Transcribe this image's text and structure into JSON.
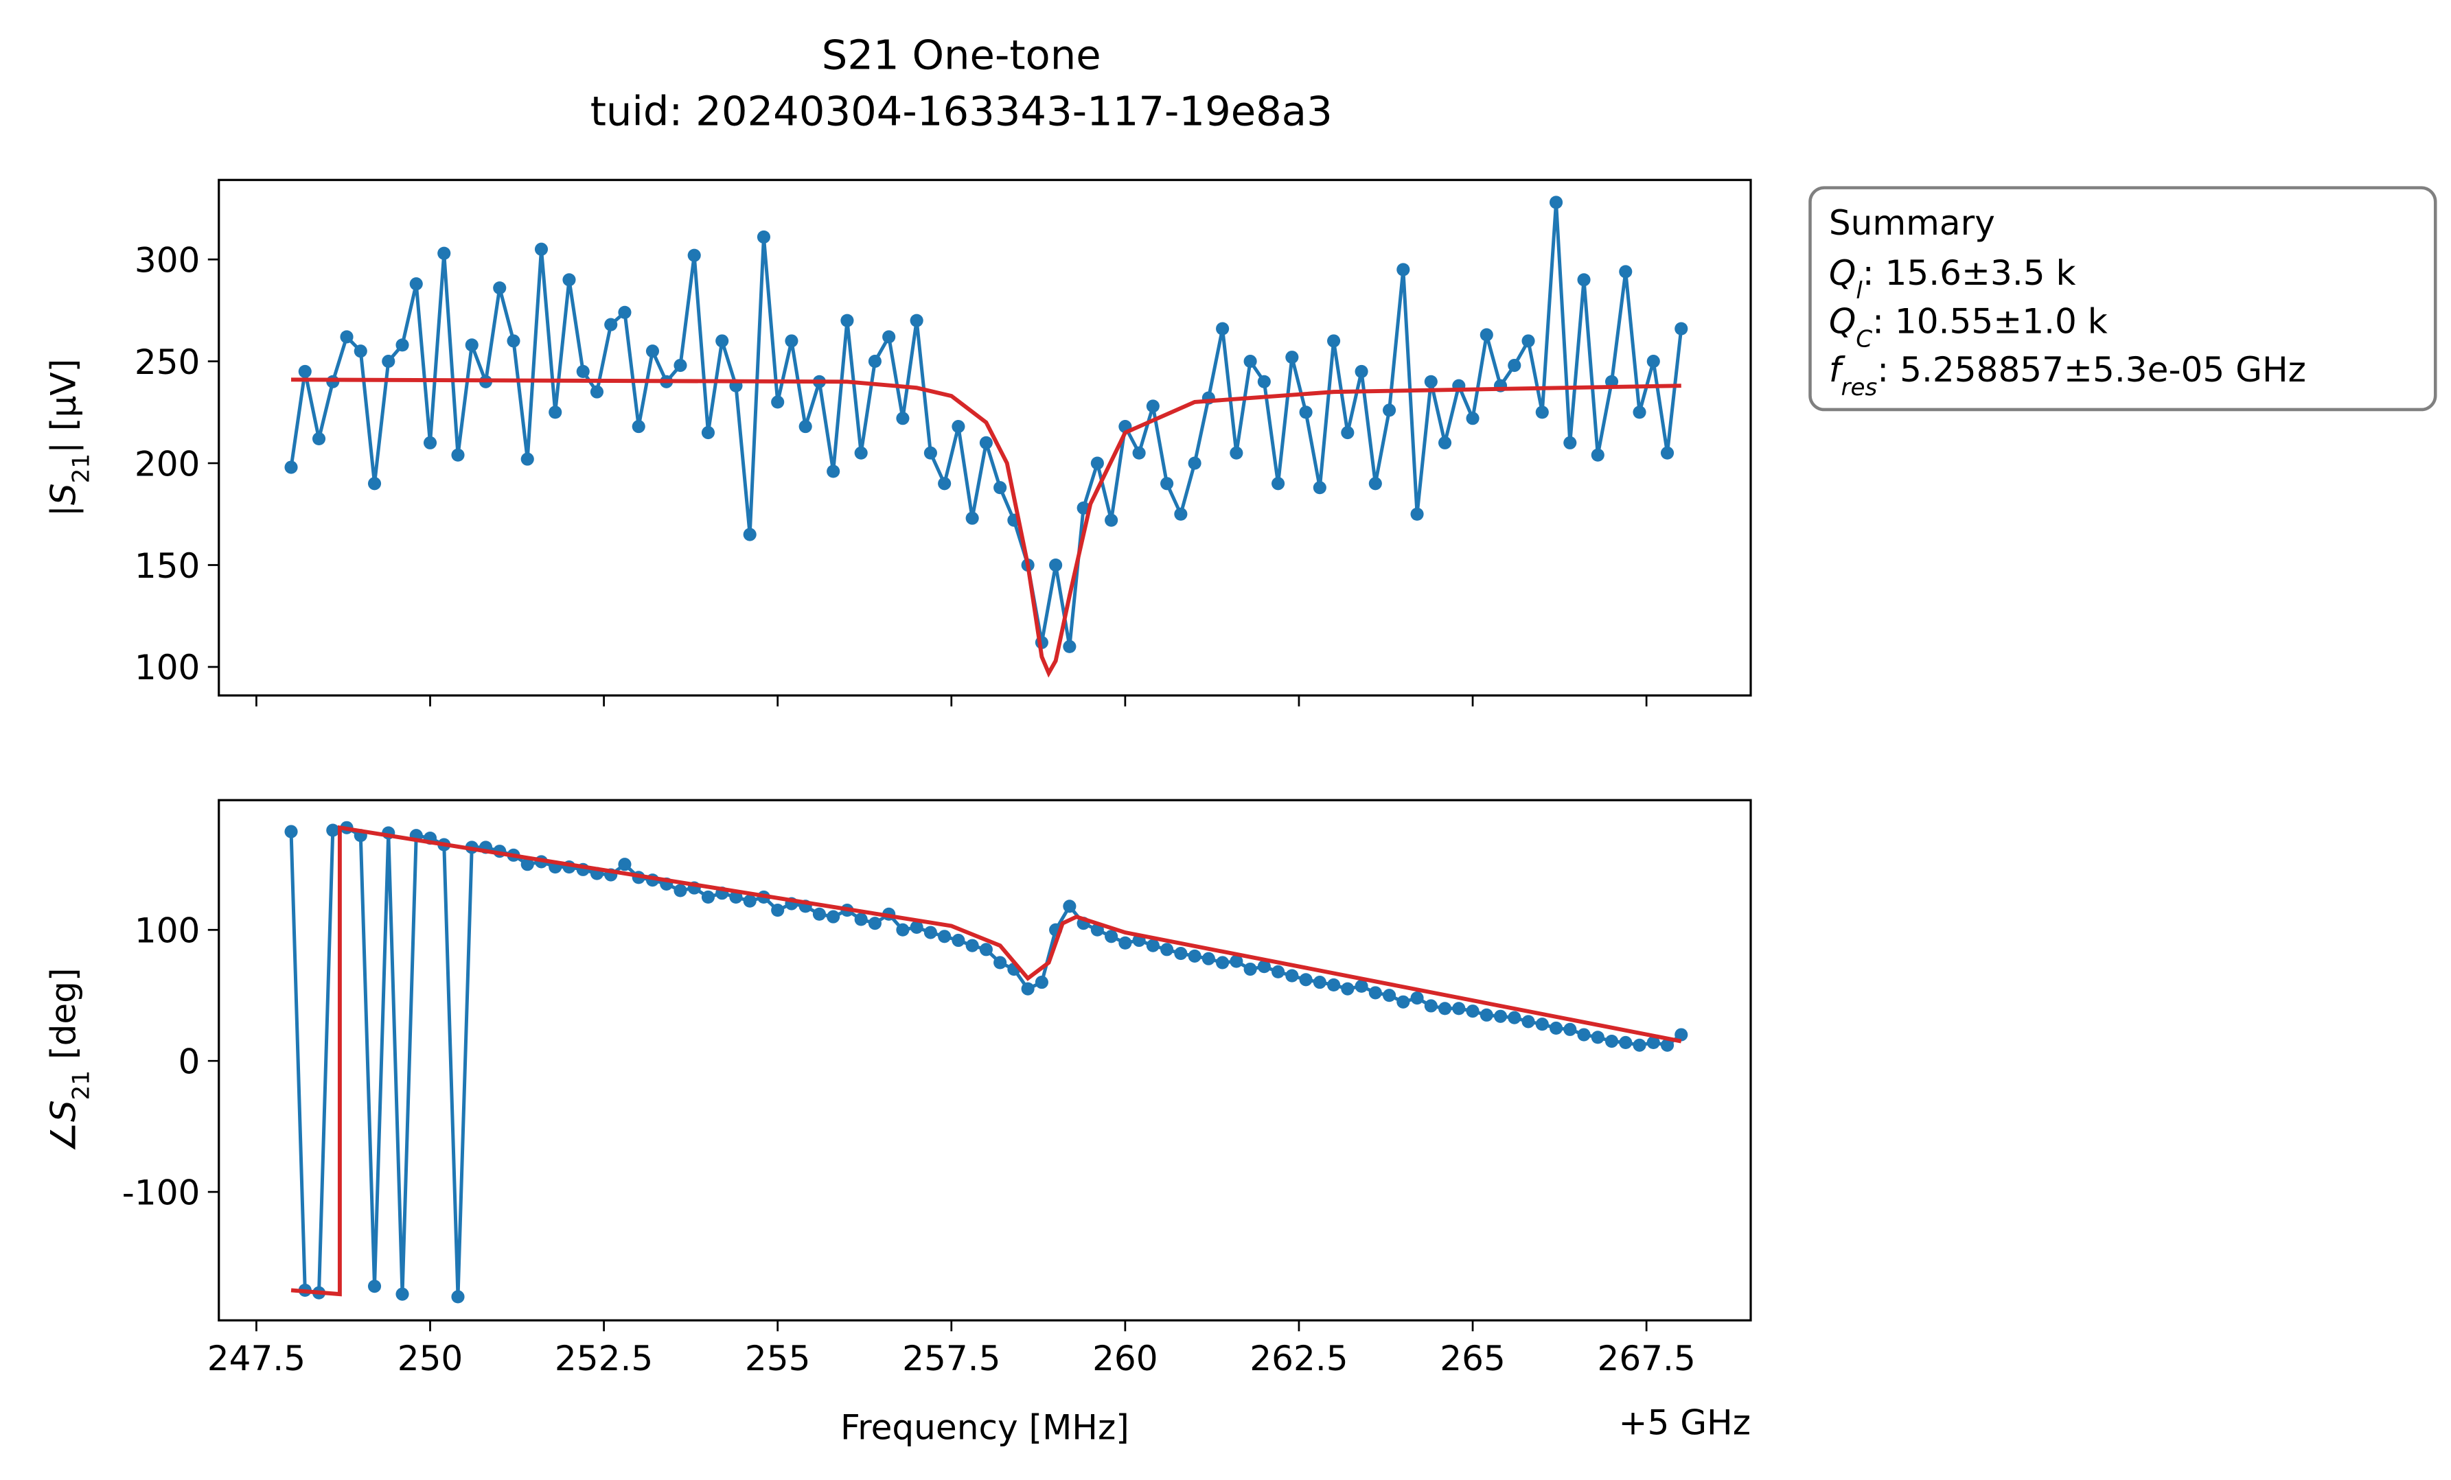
{
  "chart_data": [
    {
      "type": "line",
      "title": "S21 One-tone",
      "subtitle": "tuid: 20240304-163343-117-19e8a3",
      "ylabel": [
        "|S",
        "21",
        "| [µV]"
      ],
      "x": [
        248.0,
        248.2,
        248.4,
        248.6,
        248.8,
        249.0,
        249.2,
        249.4,
        249.6,
        249.8,
        250.0,
        250.2,
        250.4,
        250.6,
        250.8,
        251.0,
        251.2,
        251.4,
        251.6,
        251.8,
        252.0,
        252.2,
        252.4,
        252.6,
        252.8,
        253.0,
        253.2,
        253.4,
        253.6,
        253.8,
        254.0,
        254.2,
        254.4,
        254.6,
        254.8,
        255.0,
        255.2,
        255.4,
        255.6,
        255.8,
        256.0,
        256.2,
        256.4,
        256.6,
        256.8,
        257.0,
        257.2,
        257.4,
        257.6,
        257.8,
        258.0,
        258.2,
        258.4,
        258.6,
        258.8,
        259.0,
        259.2,
        259.4,
        259.6,
        259.8,
        260.0,
        260.2,
        260.4,
        260.6,
        260.8,
        261.0,
        261.2,
        261.4,
        261.6,
        261.8,
        262.0,
        262.2,
        262.4,
        262.6,
        262.8,
        263.0,
        263.2,
        263.4,
        263.6,
        263.8,
        264.0,
        264.2,
        264.4,
        264.6,
        264.8,
        265.0,
        265.2,
        265.4,
        265.6,
        265.8,
        266.0,
        266.2,
        266.4,
        266.6,
        266.8,
        267.0,
        267.2,
        267.4,
        267.6,
        267.8,
        268.0
      ],
      "series": [
        {
          "color": "#1f77b4",
          "marker": true,
          "values": [
            198,
            245,
            212,
            240,
            262,
            255,
            190,
            250,
            258,
            288,
            210,
            303,
            204,
            258,
            240,
            286,
            260,
            202,
            305,
            225,
            290,
            245,
            235,
            268,
            274,
            218,
            255,
            240,
            248,
            302,
            215,
            260,
            238,
            165,
            311,
            230,
            260,
            218,
            240,
            196,
            270,
            205,
            250,
            262,
            222,
            270,
            205,
            190,
            218,
            173,
            210,
            188,
            172,
            150,
            112,
            150,
            110,
            178,
            200,
            172,
            218,
            205,
            228,
            190,
            175,
            200,
            232,
            266,
            205,
            250,
            240,
            190,
            252,
            225,
            188,
            260,
            215,
            245,
            190,
            226,
            295,
            175,
            240,
            210,
            238,
            222,
            263,
            238,
            248,
            260,
            225,
            328,
            210,
            290,
            204,
            240,
            294,
            225,
            250,
            205,
            266
          ]
        },
        {
          "color": "#d62728",
          "marker": false,
          "x": [
            248,
            256,
            257,
            257.5,
            258,
            258.3,
            258.6,
            258.8,
            258.9,
            259.0,
            259.2,
            259.5,
            260,
            261,
            263,
            268
          ],
          "values": [
            241,
            240,
            237,
            233,
            220,
            200,
            150,
            105,
            97,
            103,
            135,
            180,
            215,
            230,
            235,
            238
          ]
        }
      ],
      "xlim": [
        246.96,
        269.0
      ],
      "ylim": [
        86,
        339
      ],
      "xticks": [
        247.5,
        250,
        252.5,
        255,
        257.5,
        260,
        262.5,
        265,
        267.5
      ],
      "yticks": [
        100,
        150,
        200,
        250,
        300
      ],
      "annotation": {
        "title": "Summary",
        "lines": [
          [
            "Q",
            "l",
            ": 15.6±3.5 k"
          ],
          [
            "Q",
            "C",
            ": 10.55±1.0 k"
          ],
          [
            "f",
            "res",
            ": 5.258857±5.3e-05 GHz"
          ]
        ]
      }
    },
    {
      "type": "line",
      "xlabel": "Frequency [MHz]",
      "x_offset_label": "+5 GHz",
      "ylabel": [
        "∠S",
        "21",
        " [deg]"
      ],
      "x": [
        248.0,
        248.2,
        248.4,
        248.6,
        248.8,
        249.0,
        249.2,
        249.4,
        249.6,
        249.8,
        250.0,
        250.2,
        250.4,
        250.6,
        250.8,
        251.0,
        251.2,
        251.4,
        251.6,
        251.8,
        252.0,
        252.2,
        252.4,
        252.6,
        252.8,
        253.0,
        253.2,
        253.4,
        253.6,
        253.8,
        254.0,
        254.2,
        254.4,
        254.6,
        254.8,
        255.0,
        255.2,
        255.4,
        255.6,
        255.8,
        256.0,
        256.2,
        256.4,
        256.6,
        256.8,
        257.0,
        257.2,
        257.4,
        257.6,
        257.8,
        258.0,
        258.2,
        258.4,
        258.6,
        258.8,
        259.0,
        259.2,
        259.4,
        259.6,
        259.8,
        260.0,
        260.2,
        260.4,
        260.6,
        260.8,
        261.0,
        261.2,
        261.4,
        261.6,
        261.8,
        262.0,
        262.2,
        262.4,
        262.6,
        262.8,
        263.0,
        263.2,
        263.4,
        263.6,
        263.8,
        264.0,
        264.2,
        264.4,
        264.6,
        264.8,
        265.0,
        265.2,
        265.4,
        265.6,
        265.8,
        266.0,
        266.2,
        266.4,
        266.6,
        266.8,
        267.0,
        267.2,
        267.4,
        267.6,
        267.8,
        268.0
      ],
      "series": [
        {
          "color": "#1f77b4",
          "marker": true,
          "values": [
            175,
            -175,
            -177,
            176,
            178,
            172,
            -172,
            174,
            -178,
            172,
            170,
            165,
            -180,
            163,
            163,
            160,
            157,
            150,
            152,
            148,
            148,
            146,
            143,
            142,
            150,
            140,
            138,
            135,
            130,
            132,
            125,
            128,
            125,
            122,
            125,
            115,
            120,
            118,
            112,
            110,
            115,
            108,
            105,
            112,
            100,
            102,
            98,
            95,
            92,
            88,
            85,
            75,
            70,
            55,
            60,
            100,
            118,
            105,
            100,
            95,
            90,
            92,
            88,
            85,
            82,
            80,
            78,
            75,
            76,
            70,
            72,
            68,
            65,
            62,
            60,
            58,
            55,
            57,
            52,
            50,
            45,
            48,
            42,
            40,
            40,
            38,
            35,
            34,
            33,
            30,
            28,
            25,
            24,
            20,
            18,
            15,
            14,
            12,
            14,
            12,
            20
          ]
        },
        {
          "color": "#d62728",
          "marker": false,
          "x": [
            248,
            248.7,
            248.7,
            257.5,
            258.2,
            258.6,
            258.9,
            259.1,
            259.3,
            260,
            268
          ],
          "values": [
            -175,
            -178,
            178,
            103,
            88,
            63,
            75,
            105,
            110,
            98,
            15
          ]
        }
      ],
      "xlim": [
        246.96,
        269.0
      ],
      "ylim": [
        -198,
        199
      ],
      "xticks": [
        247.5,
        250,
        252.5,
        255,
        257.5,
        260,
        262.5,
        265,
        267.5
      ],
      "yticks": [
        -100,
        0,
        100
      ]
    }
  ]
}
